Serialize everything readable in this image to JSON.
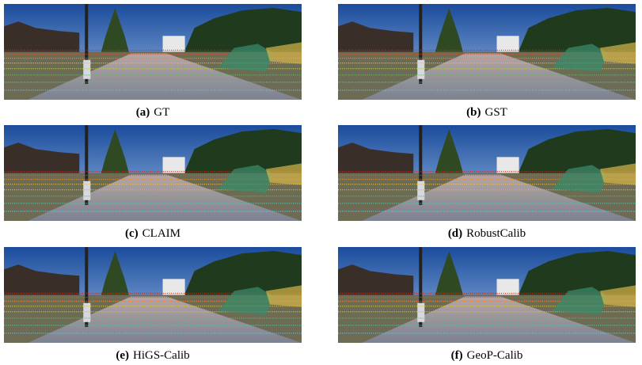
{
  "figures": [
    {
      "label": "(a)",
      "caption": "GT"
    },
    {
      "label": "(b)",
      "caption": "GST"
    },
    {
      "label": "(c)",
      "caption": "CLAIM"
    },
    {
      "label": "(d)",
      "caption": "RobustCalib"
    },
    {
      "label": "(e)",
      "caption": "HiGS-Calib"
    },
    {
      "label": "(f)",
      "caption": "GeoP-Calib"
    }
  ]
}
